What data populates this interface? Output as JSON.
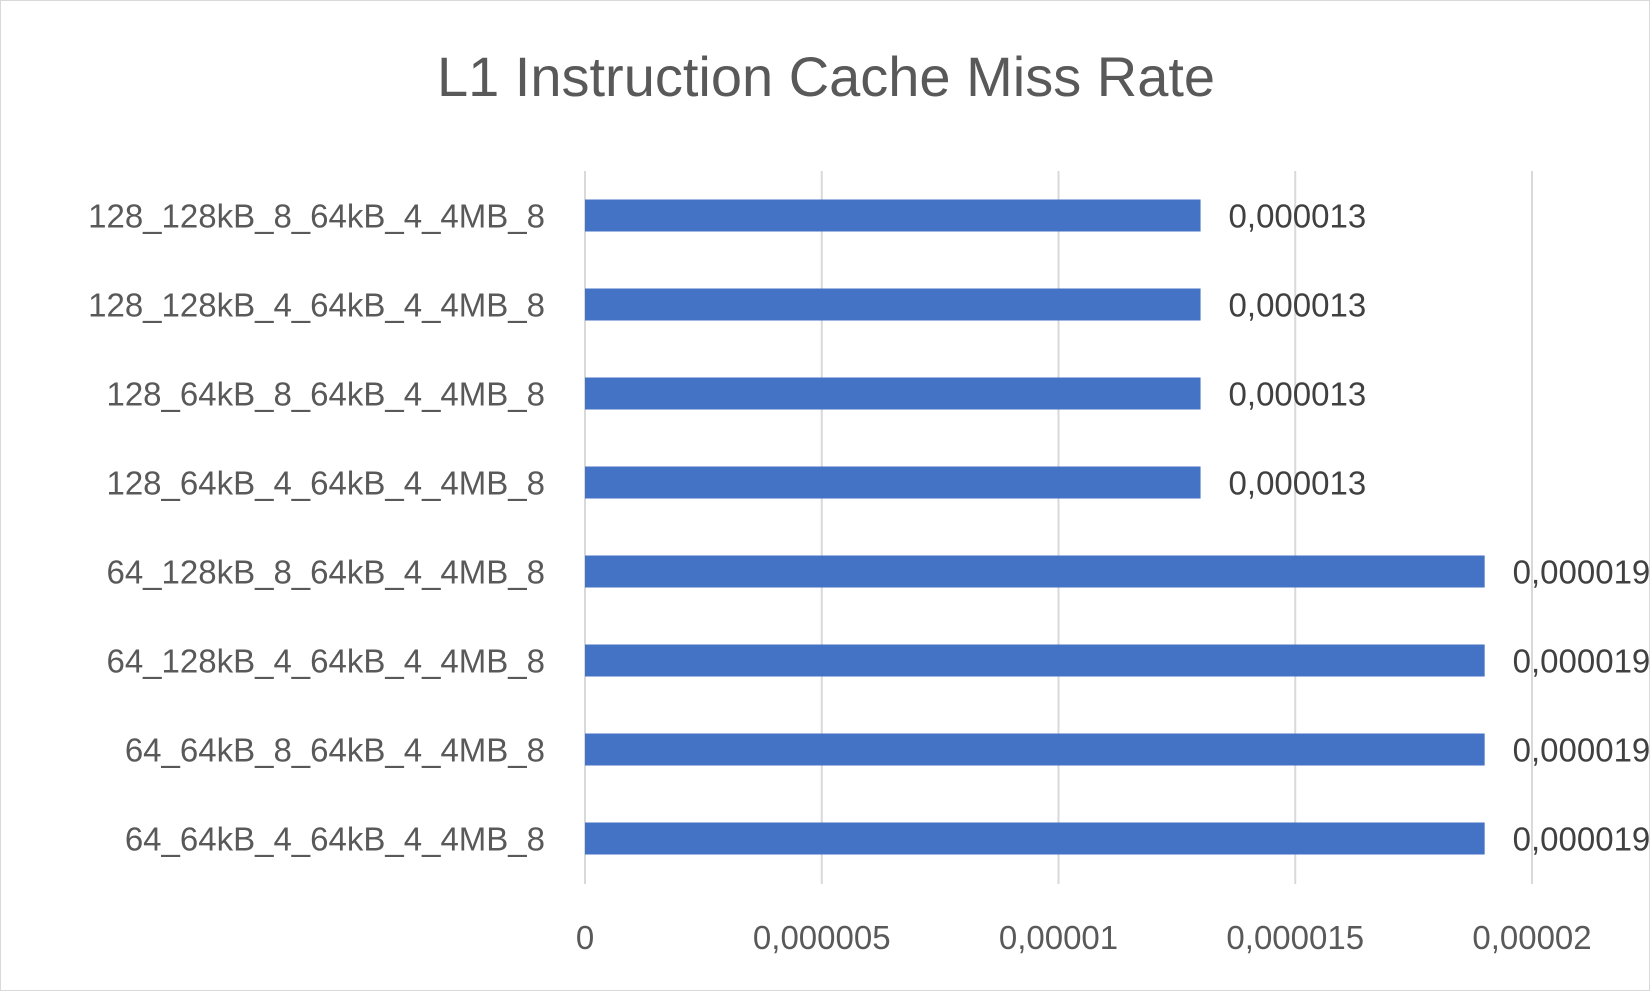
{
  "chart_data": {
    "type": "bar",
    "orientation": "horizontal",
    "title": "L1 Instruction Cache Miss Rate",
    "xlabel": "",
    "ylabel": "",
    "categories": [
      "128_128kB_8_64kB_4_4MB_8",
      "128_128kB_4_64kB_4_4MB_8",
      "128_64kB_8_64kB_4_4MB_8",
      "128_64kB_4_64kB_4_4MB_8",
      "64_128kB_8_64kB_4_4MB_8",
      "64_128kB_4_64kB_4_4MB_8",
      "64_64kB_8_64kB_4_4MB_8",
      "64_64kB_4_64kB_4_4MB_8"
    ],
    "values": [
      1.3e-05,
      1.3e-05,
      1.3e-05,
      1.3e-05,
      1.9e-05,
      1.9e-05,
      1.9e-05,
      1.9e-05
    ],
    "data_labels": [
      "0,000013",
      "0,000013",
      "0,000013",
      "0,000013",
      "0,000019",
      "0,000019",
      "0,000019",
      "0,000019"
    ],
    "xlim": [
      0,
      2e-05
    ],
    "x_ticks": [
      0,
      5e-06,
      1e-05,
      1.5e-05,
      2e-05
    ],
    "x_tick_labels": [
      "0",
      "0,000005",
      "0,00001",
      "0,000015",
      "0,00002"
    ],
    "grid": true,
    "legend": "none",
    "bar_color": "#4472c4"
  }
}
